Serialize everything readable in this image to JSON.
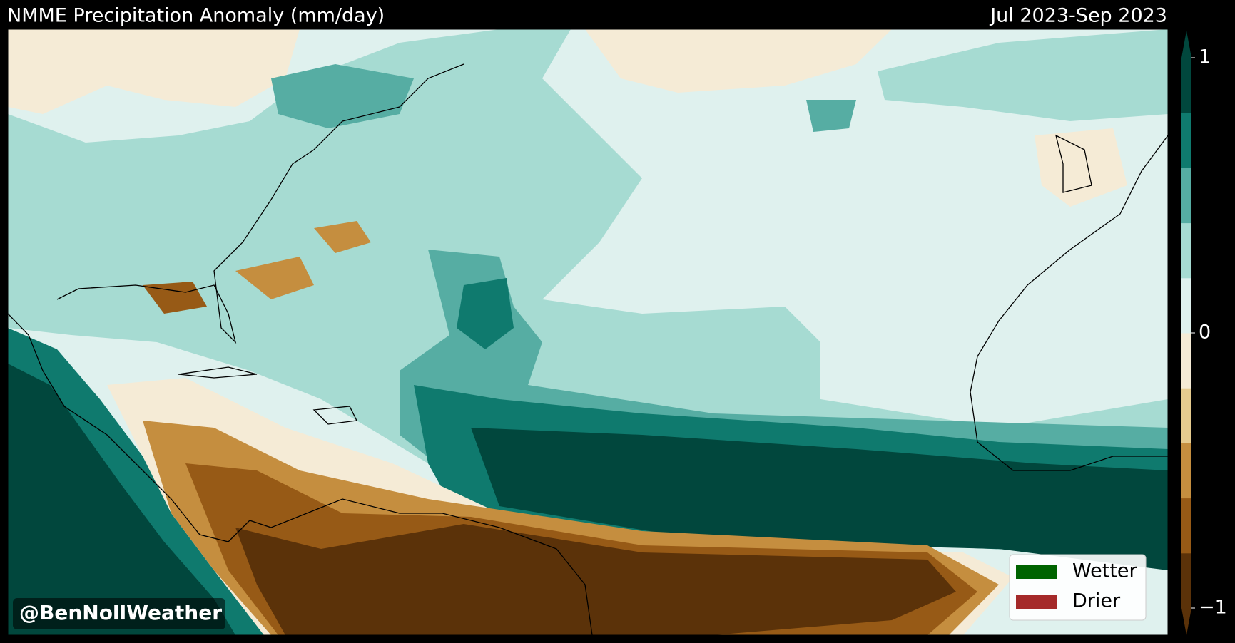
{
  "header": {
    "title": "NMME Precipitation Anomaly (mm/day)",
    "period": "Jul 2023-Sep 2023"
  },
  "colorbar": {
    "lim": [
      -1,
      1
    ],
    "ticks": [
      1,
      0,
      {
        "value": -1,
        "label": "−1"
      }
    ],
    "colors": [
      "#5b3209",
      "#975a16",
      "#c58e3f",
      "#e6cb8f",
      "#f5ebd6",
      "#dff1ee",
      "#a6dbd2",
      "#56ada3",
      "#0f7a6e",
      "#01473d"
    ]
  },
  "legend": {
    "items": [
      {
        "label": "Wetter",
        "color": "#006400"
      },
      {
        "label": "Drier",
        "color": "#a52a2a"
      }
    ]
  },
  "watermark": "@BenNollWeather"
}
